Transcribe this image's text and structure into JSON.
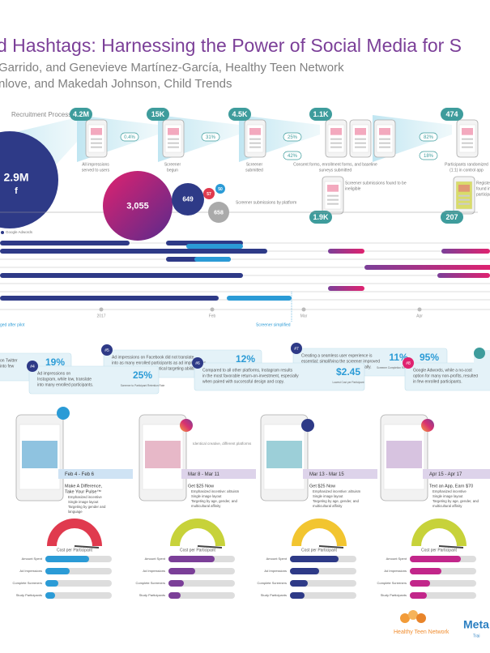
{
  "header": {
    "title": "d Hashtags: Harnessing the Power of Social Media for S",
    "authors": [
      "Garrido, and Genevieve Martínez-García, Healthy Teen Network",
      "nlove, and Makedah Johnson, Child Trends"
    ]
  },
  "recruitment": {
    "label": "Recruitment Process:",
    "stages": [
      {
        "count": "4.2M",
        "caption": [
          "All impressions",
          "served to users"
        ]
      },
      {
        "count": "15K",
        "caption": [
          "Screener",
          "begun"
        ]
      },
      {
        "count": "4.5K",
        "caption": [
          "Screener",
          "submitted"
        ]
      },
      {
        "count": "1.1K",
        "caption": [
          "Consent forms, enrollment forms, and baseline",
          "surveys submitted"
        ]
      },
      {
        "count": "474",
        "caption": [
          "Participants randomized",
          "(1:1) in control app"
        ]
      }
    ],
    "rates": [
      "0.4%",
      "31%",
      "25%",
      "82%"
    ],
    "lower_rates": [
      "42%",
      "18%"
    ],
    "lower_stages": [
      {
        "count": "1.9K",
        "caption": [
          "Screener submissions found to be",
          "ineligible"
        ]
      },
      {
        "count": "207",
        "caption": [
          "Registered",
          "found in",
          "participants"
        ]
      }
    ]
  },
  "bubbles": {
    "total": "2.9M",
    "total_icon": "f",
    "platform": [
      "3,055",
      "649",
      "57",
      "50",
      "658"
    ],
    "caption": "Screener submissions by platform"
  },
  "timeline": {
    "legend": "Google Adwords",
    "months": [
      "2017",
      "Feb",
      "Mar",
      "Apr"
    ],
    "notes": [
      "ged after pilot",
      "Screener simplified"
    ]
  },
  "callouts": [
    {
      "num": "",
      "lines": [
        "on Twitter",
        "into few"
      ],
      "stats": [
        {
          "value": "19%",
          "caption": "Screener to Participant Retention Rate"
        }
      ]
    },
    {
      "num": "#5",
      "lines": [
        "Ad impressions on Facebook did not translate",
        "into as many enrolled participants as ad impressions",
        "on Instagram, despite identical targeting abilities."
      ],
      "stats": [
        {
          "value": "12%",
          "caption": "Screener to Participant Retention Rate"
        }
      ]
    },
    {
      "num": "#7",
      "lines": [
        "Creating a seamless user experience is",
        "essential; simplifying the screener improved",
        "screener completion rates dramatically."
      ],
      "stats": [
        {
          "value": "11%",
          "caption": "Screener Completion Rate, Feb 13-18"
        },
        {
          "value": "95%",
          "caption": "Screener Completion Rate, Feb 19-Mar 6"
        }
      ]
    },
    {
      "num": "#4",
      "lines": [
        "Ad impressions on",
        "Instagram, while low, translate",
        "into many enrolled participants."
      ],
      "stats": [
        {
          "value": "25%",
          "caption": "Screener to Participant Retention Rate"
        }
      ]
    },
    {
      "num": "#6",
      "lines": [
        "Compared to all other platforms, Instagram results",
        "in the most favorable return-on-investment, especially",
        "when paired with successful design and copy."
      ],
      "stats": [
        {
          "value": "$2.45",
          "caption": "Lowest Cost per Participant"
        }
      ]
    },
    {
      "num": "#8",
      "lines": [
        "Google Adwords, while a no-cost",
        "option for many non-profits, resulted",
        "in few enrolled participants."
      ],
      "stats": []
    }
  ],
  "campaigns": {
    "note": "Identical creative, different platforms",
    "gauge_label": "Cost per Participant",
    "rows": [
      "Amount Spent",
      "Ad Impressions",
      "Complete Screeners",
      "Study Participants"
    ],
    "items": [
      {
        "dates": "Feb 4 - Feb 6",
        "headline": [
          "Make A Difference,",
          "Take Your Pulse™"
        ],
        "bullets": [
          "Emphasized incentive",
          "Single image layout",
          "Targeting by gender and",
          "language"
        ]
      },
      {
        "dates": "Mar 8 - Mar 11",
        "headline": [
          "Get $25 Now"
        ],
        "bullets": [
          "Emphasized incentive: altruism",
          "Single image layout",
          "Targeting by age, gender, and",
          "multicultural affinity"
        ]
      },
      {
        "dates": "Mar 13 - Mar 15",
        "headline": [
          "Get $25 Now"
        ],
        "bullets": [
          "Emphasized incentive: altruism",
          "Single image layout",
          "Targeting by age, gender, and",
          "multicultural affinity"
        ]
      },
      {
        "dates": "Apr 15 - Apr 17",
        "headline": [
          "Text an App, Earn $70"
        ],
        "bullets": [
          "Emphasized incentive",
          "Single image layout",
          "Targeting by age, gender, and",
          "multicultural affinity"
        ]
      }
    ]
  },
  "footer": {
    "org": "Healthy Teen Network",
    "partner": "Meta",
    "partner_sub": "Trai"
  }
}
